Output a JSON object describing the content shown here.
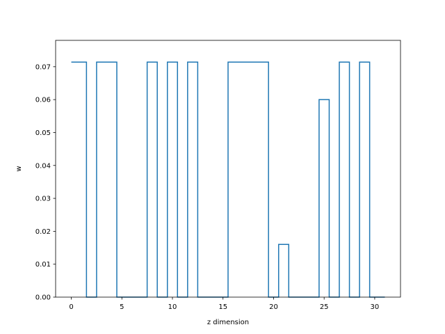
{
  "chart_data": {
    "type": "line",
    "drawstyle": "steps-mid",
    "title": "",
    "xlabel": "z dimension",
    "ylabel": "w",
    "xlim": [
      -1.55,
      32.55
    ],
    "ylim": [
      0.0,
      0.078
    ],
    "xticks": [
      0,
      5,
      10,
      15,
      20,
      25,
      30
    ],
    "yticks": [
      0.0,
      0.01,
      0.02,
      0.03,
      0.04,
      0.05,
      0.06,
      0.07
    ],
    "ytick_labels": [
      "0.00",
      "0.01",
      "0.02",
      "0.03",
      "0.04",
      "0.05",
      "0.06",
      "0.07"
    ],
    "grid": false,
    "series": [
      {
        "color": "#1f77b4",
        "x": [
          0,
          1,
          2,
          3,
          4,
          5,
          6,
          7,
          8,
          9,
          10,
          11,
          12,
          13,
          14,
          15,
          16,
          17,
          18,
          19,
          20,
          21,
          22,
          23,
          24,
          25,
          26,
          27,
          28,
          29,
          30,
          31
        ],
        "y": [
          0.0714,
          0.0714,
          0,
          0.0714,
          0.0714,
          0,
          0,
          0,
          0.0714,
          0,
          0.0714,
          0,
          0.0714,
          0,
          0,
          0,
          0.0714,
          0.0714,
          0.0714,
          0.0714,
          0,
          0.016,
          0,
          0,
          0,
          0.06,
          0,
          0.0714,
          0,
          0.0714,
          0,
          0
        ]
      }
    ]
  }
}
